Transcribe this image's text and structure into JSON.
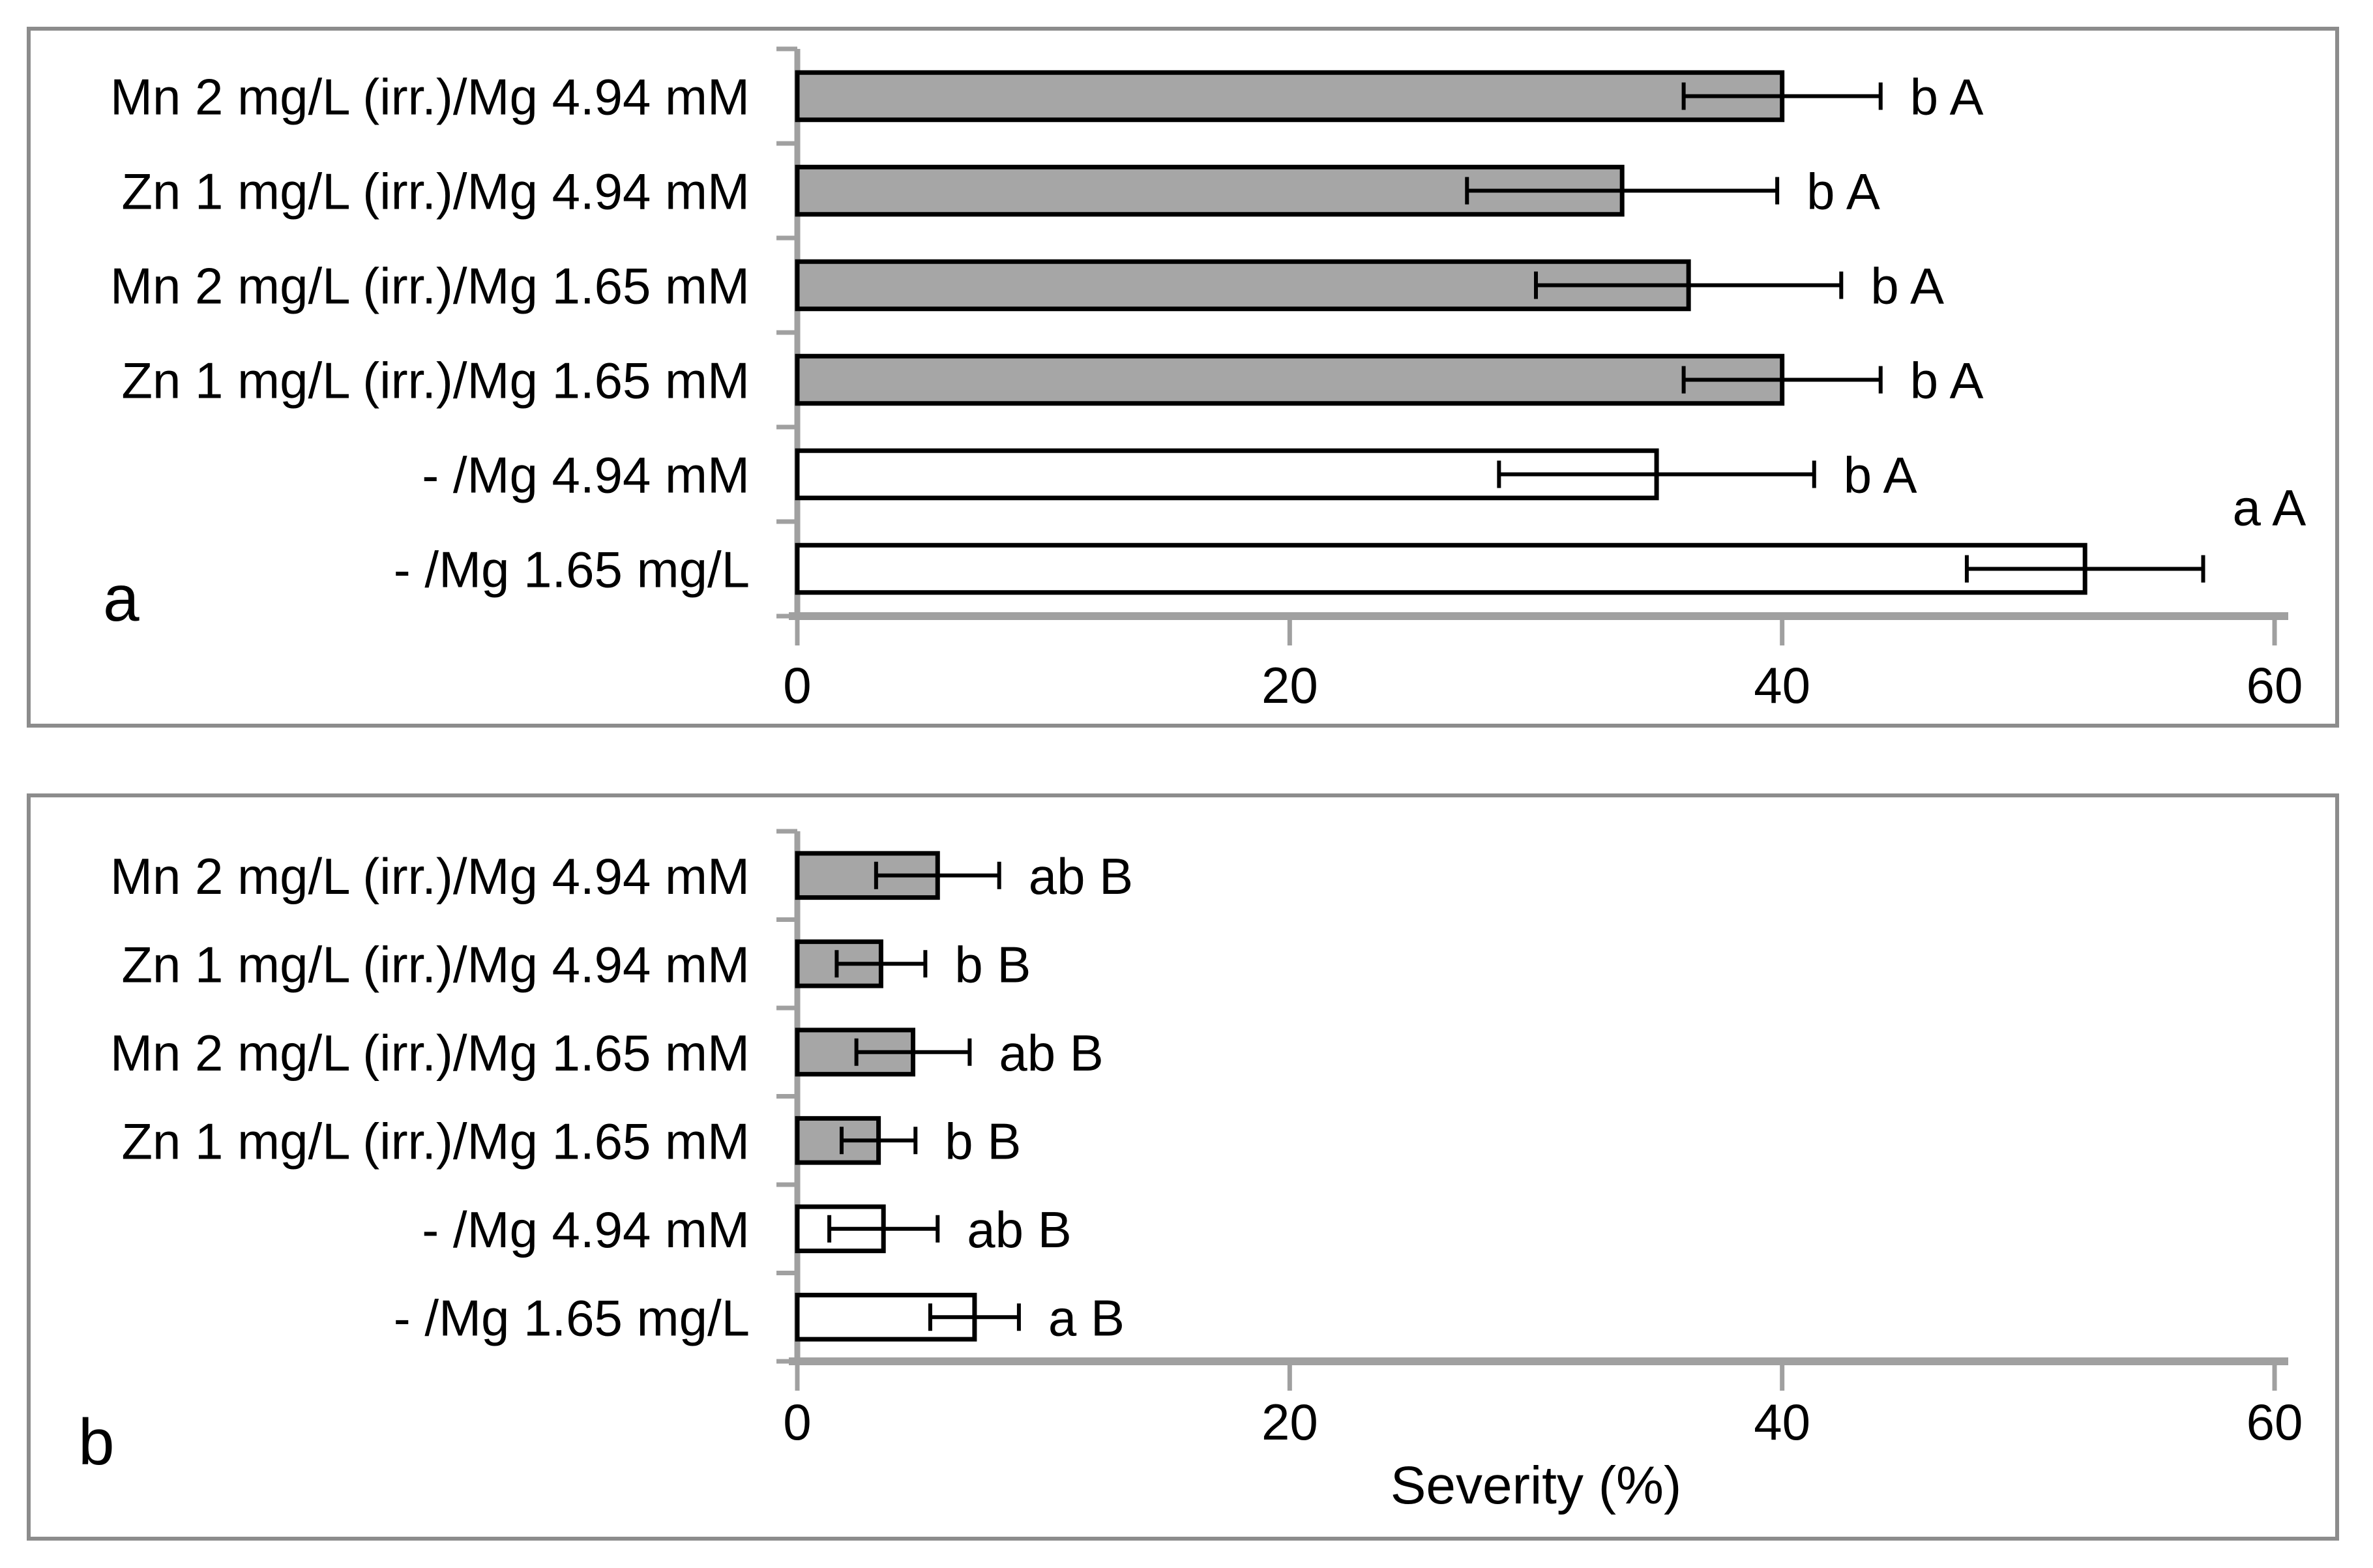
{
  "colors": {
    "bar_gray_fill": "#A6A6A6",
    "bar_white_fill": "#FFFFFF",
    "bar_stroke": "#000000",
    "error_bar": "#000000",
    "axis": "#A0A0A0",
    "panel_border": "#8C8C8C",
    "text": "#000000",
    "background": "#FFFFFF"
  },
  "chart_data": [
    {
      "type": "bar",
      "orientation": "horizontal",
      "panel_letter": "a",
      "title": "",
      "xlabel": "",
      "ylabel": "",
      "xlim": [
        0,
        60
      ],
      "xticks": [
        "0",
        "20",
        "40",
        "60"
      ],
      "grid": false,
      "legend": null,
      "categories": [
        "Mn 2 mg/L (irr.)/Mg 4.94 mM",
        "Zn 1 mg/L (irr.)/Mg 4.94 mM",
        "Mn 2 mg/L (irr.)/Mg 1.65 mM",
        "Zn 1 mg/L (irr.)/Mg 1.65 mM",
        "- /Mg 4.94 mM",
        "- /Mg 1.65 mg/L"
      ],
      "series": [
        {
          "name": "Severity (%)",
          "values": [
            40.0,
            33.5,
            36.2,
            40.0,
            34.9,
            52.3
          ],
          "errors": [
            4.0,
            6.3,
            6.2,
            4.0,
            6.4,
            4.8
          ]
        }
      ],
      "bar_fill_colors": [
        "#A6A6A6",
        "#A6A6A6",
        "#A6A6A6",
        "#A6A6A6",
        "#FFFFFF",
        "#FFFFFF"
      ],
      "sig_labels": [
        "b A",
        "b A",
        "b A",
        "b A",
        "b A",
        "a A"
      ],
      "sig_label_dy": [
        0,
        0,
        0,
        0,
        0,
        -95
      ]
    },
    {
      "type": "bar",
      "orientation": "horizontal",
      "panel_letter": "b",
      "title": "",
      "xlabel": "Severity (%)",
      "ylabel": "",
      "xlim": [
        0,
        60
      ],
      "xticks": [
        "0",
        "20",
        "40",
        "60"
      ],
      "grid": false,
      "legend": null,
      "categories": [
        "Mn 2 mg/L (irr.)/Mg 4.94 mM",
        "Zn 1 mg/L (irr.)/Mg 4.94 mM",
        "Mn 2 mg/L (irr.)/Mg 1.65 mM",
        "Zn 1 mg/L (irr.)/Mg 1.65 mM",
        "- /Mg 4.94 mM",
        "- /Mg 1.65 mg/L"
      ],
      "series": [
        {
          "name": "Severity (%)",
          "values": [
            5.7,
            3.4,
            4.7,
            3.3,
            3.5,
            7.2
          ],
          "errors": [
            2.5,
            1.8,
            2.3,
            1.5,
            2.2,
            1.8
          ]
        }
      ],
      "bar_fill_colors": [
        "#A6A6A6",
        "#A6A6A6",
        "#A6A6A6",
        "#A6A6A6",
        "#FFFFFF",
        "#FFFFFF"
      ],
      "sig_labels": [
        "ab B",
        "b B",
        "ab B",
        "b B",
        "ab B",
        "a B"
      ],
      "sig_label_dy": [
        0,
        0,
        0,
        0,
        0,
        0
      ]
    }
  ]
}
